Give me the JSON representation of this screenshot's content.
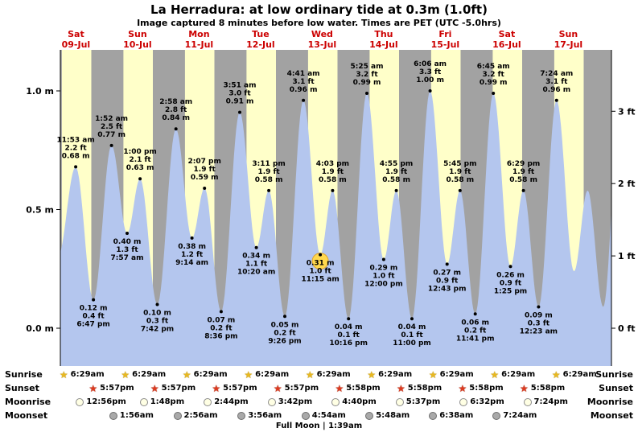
{
  "title": "La Herradura: at low ordinary tide at 0.3m (1.0ft)",
  "subtitle": "Image captured 8 minutes before low water. Times are PET (UTC -5.0hrs)",
  "side_labels": {
    "sunrise": "Sunrise",
    "sunset": "Sunset",
    "moonrise": "Moonrise",
    "moonset": "Moonset"
  },
  "full_moon_label": "Full Moon | 1:39am",
  "colors": {
    "day_band": "#ffffc9",
    "night_band": "#a2a2a2",
    "tide_fill": "#b4c6ee",
    "day_label": "#cc0000",
    "axis": "#000000",
    "annotation": "#000000",
    "highlight": "#ffd84d",
    "highlight_stroke": "#e0a32e"
  },
  "chart_data": {
    "type": "area",
    "title": "La Herradura tide heights",
    "x_axis": {
      "days": [
        {
          "dow": "Sat",
          "date": "09-Jul"
        },
        {
          "dow": "Sun",
          "date": "10-Jul"
        },
        {
          "dow": "Mon",
          "date": "11-Jul"
        },
        {
          "dow": "Tue",
          "date": "12-Jul"
        },
        {
          "dow": "Wed",
          "date": "13-Jul"
        },
        {
          "dow": "Thu",
          "date": "14-Jul"
        },
        {
          "dow": "Fri",
          "date": "15-Jul"
        },
        {
          "dow": "Sat",
          "date": "16-Jul"
        },
        {
          "dow": "Sun",
          "date": "17-Jul"
        }
      ]
    },
    "y_axis_left": {
      "unit": "m",
      "ticks": [
        {
          "label": "1.0 m",
          "value": 1.0
        },
        {
          "label": "0.5 m",
          "value": 0.5
        },
        {
          "label": "0.0 m",
          "value": 0.0
        }
      ]
    },
    "y_axis_right": {
      "unit": "ft",
      "ticks": [
        {
          "label": "3 ft",
          "value": 3
        },
        {
          "label": "2 ft",
          "value": 2
        },
        {
          "label": "1 ft",
          "value": 1
        },
        {
          "label": "0 ft",
          "value": 0
        }
      ]
    },
    "tide_events": [
      {
        "t": 11.883,
        "h": 0.68,
        "type": "high",
        "time": "11:53 am",
        "ft": "2.2 ft",
        "m": "0.68 m"
      },
      {
        "t": 18.783,
        "h": 0.12,
        "type": "low",
        "time": "6:47 pm",
        "ft": "0.4 ft",
        "m": "0.12 m"
      },
      {
        "t": 25.867,
        "h": 0.77,
        "type": "high",
        "time": "1:52 am",
        "ft": "2.5 ft",
        "m": "0.77 m"
      },
      {
        "t": 31.95,
        "h": 0.4,
        "type": "low",
        "time": "7:57 am",
        "ft": "1.3 ft",
        "m": "0.40 m"
      },
      {
        "t": 37.0,
        "h": 0.63,
        "type": "high",
        "time": "1:00 pm",
        "ft": "2.1 ft",
        "m": "0.63 m"
      },
      {
        "t": 43.7,
        "h": 0.1,
        "type": "low",
        "time": "7:42 pm",
        "ft": "0.3 ft",
        "m": "0.10 m"
      },
      {
        "t": 50.967,
        "h": 0.84,
        "type": "high",
        "time": "2:58 am",
        "ft": "2.8 ft",
        "m": "0.84 m"
      },
      {
        "t": 57.233,
        "h": 0.38,
        "type": "low",
        "time": "9:14 am",
        "ft": "1.2 ft",
        "m": "0.38 m"
      },
      {
        "t": 62.117,
        "h": 0.59,
        "type": "high",
        "time": "2:07 pm",
        "ft": "1.9 ft",
        "m": "0.59 m"
      },
      {
        "t": 68.6,
        "h": 0.07,
        "type": "low",
        "time": "8:36 pm",
        "ft": "0.2 ft",
        "m": "0.07 m"
      },
      {
        "t": 75.85,
        "h": 0.91,
        "type": "high",
        "time": "3:51 am",
        "ft": "3.0 ft",
        "m": "0.91 m"
      },
      {
        "t": 82.333,
        "h": 0.34,
        "type": "low",
        "time": "10:20 am",
        "ft": "1.1 ft",
        "m": "0.34 m"
      },
      {
        "t": 87.183,
        "h": 0.58,
        "type": "high",
        "time": "3:11 pm",
        "ft": "1.9 ft",
        "m": "0.58 m"
      },
      {
        "t": 93.433,
        "h": 0.05,
        "type": "low",
        "time": "9:26 pm",
        "ft": "0.2 ft",
        "m": "0.05 m"
      },
      {
        "t": 100.683,
        "h": 0.96,
        "type": "high",
        "time": "4:41 am",
        "ft": "3.1 ft",
        "m": "0.96 m"
      },
      {
        "t": 107.25,
        "h": 0.31,
        "type": "low",
        "time": "11:15 am",
        "ft": "1.0 ft",
        "m": "0.31 m",
        "highlight": true
      },
      {
        "t": 112.05,
        "h": 0.58,
        "type": "high",
        "time": "4:03 pm",
        "ft": "1.9 ft",
        "m": "0.58 m"
      },
      {
        "t": 118.267,
        "h": 0.04,
        "type": "low",
        "time": "10:16 pm",
        "ft": "0.1 ft",
        "m": "0.04 m"
      },
      {
        "t": 125.417,
        "h": 0.99,
        "type": "high",
        "time": "5:25 am",
        "ft": "3.2 ft",
        "m": "0.99 m"
      },
      {
        "t": 132.0,
        "h": 0.29,
        "type": "low",
        "time": "12:00 pm",
        "ft": "1.0 ft",
        "m": "0.29 m"
      },
      {
        "t": 136.917,
        "h": 0.58,
        "type": "high",
        "time": "4:55 pm",
        "ft": "1.9 ft",
        "m": "0.58 m"
      },
      {
        "t": 143.0,
        "h": 0.04,
        "type": "low",
        "time": "11:00 pm",
        "ft": "0.1 ft",
        "m": "0.04 m"
      },
      {
        "t": 150.1,
        "h": 1.0,
        "type": "high",
        "time": "6:06 am",
        "ft": "3.3 ft",
        "m": "1.00 m"
      },
      {
        "t": 156.717,
        "h": 0.27,
        "type": "low",
        "time": "12:43 pm",
        "ft": "0.9 ft",
        "m": "0.27 m"
      },
      {
        "t": 161.75,
        "h": 0.58,
        "type": "high",
        "time": "5:45 pm",
        "ft": "1.9 ft",
        "m": "0.58 m"
      },
      {
        "t": 167.683,
        "h": 0.06,
        "type": "low",
        "time": "11:41 pm",
        "ft": "0.2 ft",
        "m": "0.06 m"
      },
      {
        "t": 174.75,
        "h": 0.99,
        "type": "high",
        "time": "6:45 am",
        "ft": "3.2 ft",
        "m": "0.99 m"
      },
      {
        "t": 181.417,
        "h": 0.26,
        "type": "low",
        "time": "1:25 pm",
        "ft": "0.9 ft",
        "m": "0.26 m"
      },
      {
        "t": 186.483,
        "h": 0.58,
        "type": "high",
        "time": "6:29 pm",
        "ft": "1.9 ft",
        "m": "0.58 m"
      },
      {
        "t": 192.383,
        "h": 0.09,
        "type": "low",
        "time": "12:23 am",
        "ft": "0.3 ft",
        "m": "0.09 m"
      },
      {
        "t": 199.4,
        "h": 0.96,
        "type": "high",
        "time": "7:24 am",
        "ft": "3.1 ft",
        "m": "0.96 m"
      }
    ],
    "curve_pre": [
      {
        "t": 4.9,
        "h": 0.3
      }
    ],
    "curve_post": [
      {
        "t": 206.2,
        "h": 0.24
      },
      {
        "t": 211.5,
        "h": 0.58
      },
      {
        "t": 217.6,
        "h": 0.09
      },
      {
        "t": 223.9,
        "h": 0.9
      }
    ],
    "astro": {
      "sunrise": [
        {
          "t": 6.483,
          "label": "6:29am"
        },
        {
          "t": 30.483,
          "label": "6:29am"
        },
        {
          "t": 54.483,
          "label": "6:29am"
        },
        {
          "t": 78.483,
          "label": "6:29am"
        },
        {
          "t": 102.483,
          "label": "6:29am"
        },
        {
          "t": 126.483,
          "label": "6:29am"
        },
        {
          "t": 150.483,
          "label": "6:29am"
        },
        {
          "t": 174.483,
          "label": "6:29am"
        },
        {
          "t": 198.483,
          "label": "6:29am"
        }
      ],
      "sunset": [
        {
          "t": 17.95,
          "label": "5:57pm"
        },
        {
          "t": 41.95,
          "label": "5:57pm"
        },
        {
          "t": 65.95,
          "label": "5:57pm"
        },
        {
          "t": 89.95,
          "label": "5:57pm"
        },
        {
          "t": 113.967,
          "label": "5:58pm"
        },
        {
          "t": 137.967,
          "label": "5:58pm"
        },
        {
          "t": 161.967,
          "label": "5:58pm"
        },
        {
          "t": 185.967,
          "label": "5:58pm"
        }
      ],
      "moonrise": [
        {
          "t": 12.933,
          "label": "12:56pm"
        },
        {
          "t": 37.8,
          "label": "1:48pm"
        },
        {
          "t": 62.733,
          "label": "2:44pm"
        },
        {
          "t": 87.7,
          "label": "3:42pm"
        },
        {
          "t": 112.667,
          "label": "4:40pm"
        },
        {
          "t": 137.617,
          "label": "5:37pm"
        },
        {
          "t": 162.533,
          "label": "6:32pm"
        },
        {
          "t": 187.4,
          "label": "7:24pm"
        }
      ],
      "moonset": [
        {
          "t": 25.933,
          "label": "1:56am"
        },
        {
          "t": 50.933,
          "label": "2:56am"
        },
        {
          "t": 75.933,
          "label": "3:56am"
        },
        {
          "t": 100.9,
          "label": "4:54am"
        },
        {
          "t": 125.8,
          "label": "5:48am"
        },
        {
          "t": 150.633,
          "label": "6:38am"
        },
        {
          "t": 175.4,
          "label": "7:24am"
        }
      ]
    }
  }
}
